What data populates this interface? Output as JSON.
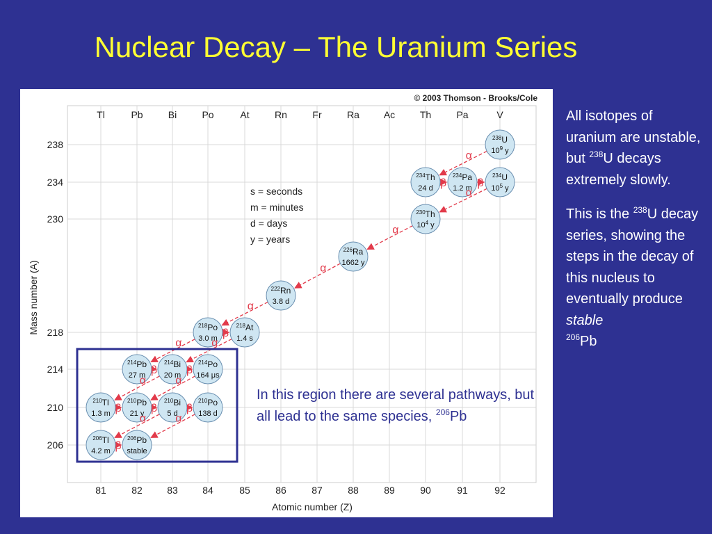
{
  "title": "Nuclear Decay – The Uranium Series",
  "figure": {
    "copyright": "© 2003 Thomson - Brooks/Cole",
    "elements": [
      "Tl",
      "Pb",
      "Bi",
      "Po",
      "At",
      "Rn",
      "Fr",
      "Ra",
      "Ac",
      "Th",
      "Pa",
      "V"
    ],
    "atomic_numbers": [
      "81",
      "82",
      "83",
      "84",
      "85",
      "86",
      "87",
      "88",
      "89",
      "90",
      "91",
      "92"
    ],
    "mass_numbers": [
      "238",
      "234",
      "230",
      "218",
      "214",
      "210",
      "206"
    ],
    "y_axis_label": "Mass number (A)",
    "x_axis_label": "Atomic number (Z)",
    "legend": [
      "s  =  seconds",
      "m =  minutes",
      "d  =  days",
      "y  =  years"
    ],
    "alpha_symbol": "α",
    "beta_symbol": "β",
    "nuclides": [
      {
        "mass": "238",
        "symbol": "U",
        "halflife": "10",
        "exp": "9",
        "unit": "y"
      },
      {
        "mass": "234",
        "symbol": "Th",
        "halflife": "24 d"
      },
      {
        "mass": "234",
        "symbol": "Pa",
        "halflife": "1.2 m"
      },
      {
        "mass": "234",
        "symbol": "U",
        "halflife": "10",
        "exp": "5",
        "unit": "y"
      },
      {
        "mass": "230",
        "symbol": "Th",
        "halflife": "10",
        "exp": "4",
        "unit": "y"
      },
      {
        "mass": "226",
        "symbol": "Ra",
        "halflife": "1662 y"
      },
      {
        "mass": "222",
        "symbol": "Rn",
        "halflife": "3.8 d"
      },
      {
        "mass": "218",
        "symbol": "Po",
        "halflife": "3.0 m"
      },
      {
        "mass": "218",
        "symbol": "At",
        "halflife": "1.4 s"
      },
      {
        "mass": "214",
        "symbol": "Pb",
        "halflife": "27 m"
      },
      {
        "mass": "214",
        "symbol": "Bi",
        "halflife": "20 m"
      },
      {
        "mass": "214",
        "symbol": "Po",
        "halflife": "164 μs"
      },
      {
        "mass": "210",
        "symbol": "Tl",
        "halflife": "1.3 m"
      },
      {
        "mass": "210",
        "symbol": "Pb",
        "halflife": "21 y"
      },
      {
        "mass": "210",
        "symbol": "Bi",
        "halflife": "5 d"
      },
      {
        "mass": "210",
        "symbol": "Po",
        "halflife": "138 d"
      },
      {
        "mass": "206",
        "symbol": "Tl",
        "halflife": "4.2 m"
      },
      {
        "mass": "206",
        "symbol": "Pb",
        "halflife": "stable"
      }
    ]
  },
  "region_note": {
    "text": "In this region there are several pathways, but all lead to the same species, ",
    "sup": "206",
    "element": "Pb"
  },
  "side_text": {
    "p1_text": "All isotopes of uranium are unstable, but ",
    "p1_sup": "238",
    "p1_rest": "U decays extremely slowly.",
    "p2_text": "This is the ",
    "p2_sup": "238",
    "p2_rest": "U decay series, showing the steps in the decay of this nucleus to eventually produce ",
    "p2_italic": "stable",
    "p2_sup2": "206",
    "p2_end": "Pb"
  },
  "colors": {
    "background": "#2e3192",
    "title": "#ffff33",
    "nuclide_fill": "#cfe6f2",
    "arrow": "#e23a4a",
    "region_box": "#2e3192"
  }
}
